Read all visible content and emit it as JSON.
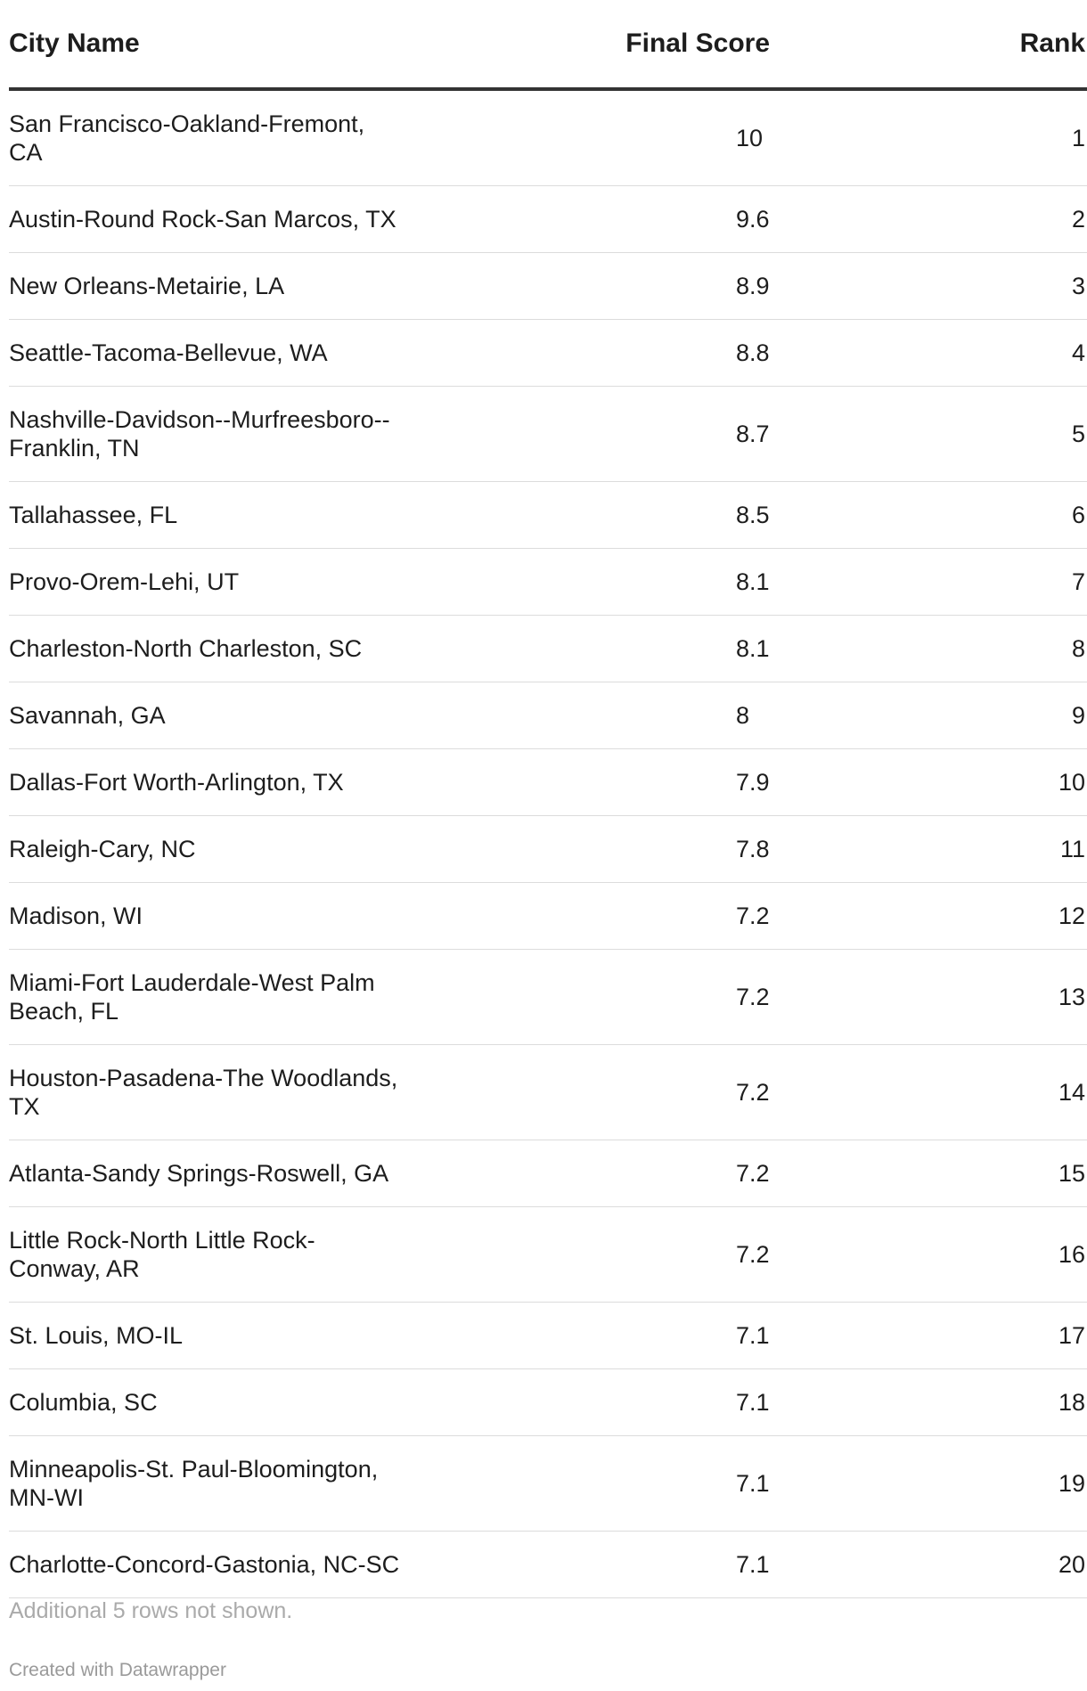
{
  "chart_data": {
    "type": "table",
    "columns": [
      "City Name",
      "Final Score",
      "Rank"
    ],
    "rows": [
      {
        "city": "San Francisco-Oakland-Fremont, CA",
        "score": "10",
        "rank": "1"
      },
      {
        "city": "Austin-Round Rock-San Marcos, TX",
        "score": "9.6",
        "rank": "2"
      },
      {
        "city": "New Orleans-Metairie, LA",
        "score": "8.9",
        "rank": "3"
      },
      {
        "city": "Seattle-Tacoma-Bellevue, WA",
        "score": "8.8",
        "rank": "4"
      },
      {
        "city": "Nashville-Davidson--Murfreesboro--Franklin, TN",
        "score": "8.7",
        "rank": "5"
      },
      {
        "city": "Tallahassee, FL",
        "score": "8.5",
        "rank": "6"
      },
      {
        "city": "Provo-Orem-Lehi, UT",
        "score": "8.1",
        "rank": "7"
      },
      {
        "city": "Charleston-North Charleston, SC",
        "score": "8.1",
        "rank": "8"
      },
      {
        "city": "Savannah, GA",
        "score": "8",
        "rank": "9"
      },
      {
        "city": "Dallas-Fort Worth-Arlington, TX",
        "score": "7.9",
        "rank": "10"
      },
      {
        "city": "Raleigh-Cary, NC",
        "score": "7.8",
        "rank": "11"
      },
      {
        "city": "Madison, WI",
        "score": "7.2",
        "rank": "12"
      },
      {
        "city": "Miami-Fort Lauderdale-West Palm Beach, FL",
        "score": "7.2",
        "rank": "13"
      },
      {
        "city": "Houston-Pasadena-The Woodlands, TX",
        "score": "7.2",
        "rank": "14"
      },
      {
        "city": "Atlanta-Sandy Springs-Roswell, GA",
        "score": "7.2",
        "rank": "15"
      },
      {
        "city": "Little Rock-North Little Rock-Conway, AR",
        "score": "7.2",
        "rank": "16"
      },
      {
        "city": "St. Louis, MO-IL",
        "score": "7.1",
        "rank": "17"
      },
      {
        "city": "Columbia, SC",
        "score": "7.1",
        "rank": "18"
      },
      {
        "city": "Minneapolis-St. Paul-Bloomington, MN-WI",
        "score": "7.1",
        "rank": "19"
      },
      {
        "city": "Charlotte-Concord-Gastonia, NC-SC",
        "score": "7.1",
        "rank": "20"
      }
    ]
  },
  "footer": {
    "note": "Additional 5 rows not shown.",
    "credit": "Created with Datawrapper"
  },
  "colors": {
    "text": "#1d1d1d",
    "header_rule": "#333333",
    "row_rule": "#dcdcdc",
    "muted": "#aaaaaa"
  }
}
